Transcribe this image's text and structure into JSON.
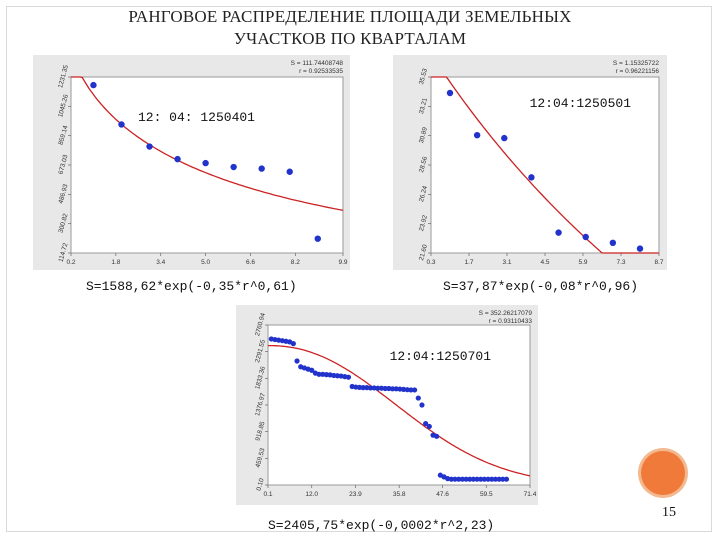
{
  "slide": {
    "title_line1": "РАНГОВОЕ РАСПРЕДЕЛЕНИЕ ПЛОЩАДИ ЗЕМЕЛЬНЫХ",
    "title_line2": "УЧАСТКОВ ПО КВАРТАЛАМ",
    "page_number": "15",
    "accent_color": "#f07a3a"
  },
  "chart_data": [
    {
      "type": "scatter",
      "title": "12: 04: 1250401",
      "stats": [
        "S = 111.74408748",
        "r = 0.92533535"
      ],
      "formula": "S=1588,62*exp(-0,35*r^0,61)",
      "xlim": [
        0.2,
        9.9
      ],
      "ylim": [
        114.22,
        1231.35
      ],
      "x_ticks": [
        "0.2",
        "1.8",
        "3.4",
        "5.0",
        "6.6",
        "8.2",
        "9.9"
      ],
      "x_tick_values": [
        0.2,
        1.8,
        3.4,
        5.0,
        6.6,
        8.2,
        9.9
      ],
      "y_ticks": [
        "1231.35",
        "1045.26",
        "859.14",
        "673.03",
        "486.93",
        "300.82",
        "114.72"
      ],
      "y_tick_values": [
        1231.35,
        1045.26,
        859.14,
        673.03,
        486.93,
        300.82,
        114.72
      ],
      "points": {
        "x": [
          1.0,
          2.0,
          3.0,
          4.0,
          5.0,
          6.0,
          7.0,
          8.0,
          9.0
        ],
        "y": [
          1180,
          930,
          790,
          710,
          685,
          660,
          650,
          630,
          205
        ]
      },
      "curve": {
        "A": 1588.62,
        "b": 0.35,
        "c": 0.61
      },
      "colors": {
        "points": "#2233cc",
        "curve": "#cc2222"
      }
    },
    {
      "type": "scatter",
      "title": "12:04:1250501",
      "stats": [
        "S = 1.15325722",
        "r = 0.96221156"
      ],
      "formula": "S=37,87*exp(-0,08*r^0,96)",
      "xlim": [
        0.3,
        8.7
      ],
      "ylim": [
        23.2,
        35.3
      ],
      "x_ticks": [
        "0.3",
        "1.7",
        "3.1",
        "4.5",
        "5.9",
        "7.3",
        "8.7"
      ],
      "x_tick_values": [
        0.3,
        1.7,
        3.1,
        4.5,
        5.9,
        7.3,
        8.7
      ],
      "y_ticks": [
        "35.53",
        "33.21",
        "30.89",
        "28.56",
        "26.24",
        "23.92",
        "21.60"
      ],
      "y_tick_values": [
        35.53,
        33.21,
        30.89,
        28.56,
        26.24,
        23.92,
        21.6
      ],
      "points": {
        "x": [
          1,
          2,
          3,
          4,
          5,
          6,
          7,
          8
        ],
        "y": [
          34.2,
          31.3,
          31.1,
          28.4,
          24.6,
          24.3,
          23.9,
          23.5
        ]
      },
      "curve": {
        "A": 37.87,
        "b": 0.08,
        "c": 0.96
      },
      "colors": {
        "points": "#2233cc",
        "curve": "#cc2222"
      }
    },
    {
      "type": "scatter",
      "title": "12:04:1250701",
      "stats": [
        "S = 352.26217079",
        "r = 0.93110433"
      ],
      "formula": "S=2405,75*exp(-0,0002*r^2,23)",
      "xlim": [
        0.1,
        71.4
      ],
      "ylim": [
        0.1,
        2760.94
      ],
      "x_ticks": [
        "0.1",
        "12.0",
        "23.9",
        "35.8",
        "47.6",
        "59.5",
        "71.4"
      ],
      "x_tick_values": [
        0.1,
        12.0,
        23.9,
        35.8,
        47.6,
        59.5,
        71.4
      ],
      "y_ticks": [
        "2760.94",
        "2291.55",
        "1833.36",
        "1376.97",
        "918.85",
        "459.53",
        "0.10"
      ],
      "y_tick_values": [
        2760.94,
        2291.55,
        1833.36,
        1376.97,
        918.85,
        459.53,
        0.1
      ],
      "points": {
        "x": [
          1,
          2,
          3,
          4,
          5,
          6,
          7,
          8,
          9,
          10,
          11,
          12,
          13,
          14,
          15,
          16,
          17,
          18,
          19,
          20,
          21,
          22,
          23,
          24,
          25,
          26,
          27,
          28,
          29,
          30,
          31,
          32,
          33,
          34,
          35,
          36,
          37,
          38,
          39,
          40,
          41,
          42,
          43,
          44,
          45,
          46,
          47,
          48,
          49,
          50,
          51,
          52,
          53,
          54,
          55,
          56,
          57,
          58,
          59,
          60,
          61,
          62,
          63,
          64,
          65
        ],
        "y": [
          2520,
          2510,
          2500,
          2490,
          2480,
          2470,
          2440,
          2140,
          2040,
          2020,
          2000,
          1980,
          1930,
          1910,
          1910,
          1905,
          1900,
          1890,
          1885,
          1880,
          1870,
          1860,
          1700,
          1690,
          1685,
          1680,
          1680,
          1675,
          1675,
          1670,
          1670,
          1665,
          1665,
          1660,
          1660,
          1655,
          1650,
          1645,
          1640,
          1640,
          1500,
          1380,
          1060,
          1010,
          860,
          840,
          170,
          140,
          110,
          100,
          100,
          100,
          100,
          100,
          100,
          100,
          100,
          100,
          100,
          100,
          100,
          100,
          100,
          100,
          100
        ]
      },
      "curve": {
        "A": 2405.75,
        "b": 0.0002,
        "c": 2.23
      },
      "colors": {
        "points": "#2233cc",
        "curve": "#cc2222"
      }
    }
  ]
}
